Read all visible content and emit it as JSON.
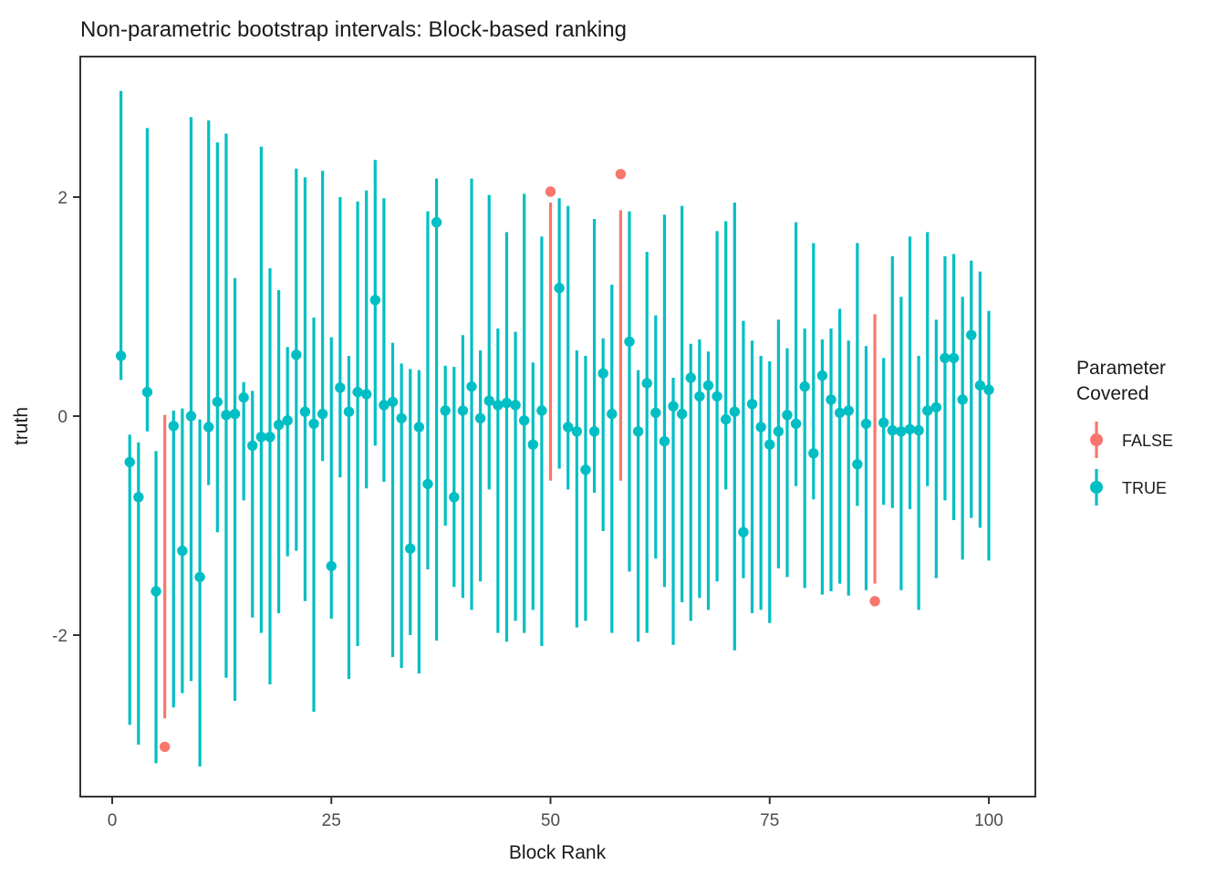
{
  "chart_data": {
    "type": "pointrange",
    "title": "Non-parametric bootstrap intervals: Block-based ranking",
    "xlabel": "Block Rank",
    "ylabel": "truth",
    "xlim": [
      -3.6,
      105.3
    ],
    "ylim": [
      -3.47,
      3.28
    ],
    "x_ticks": [
      0,
      25,
      50,
      75,
      100
    ],
    "y_ticks": [
      -2,
      0,
      2
    ],
    "grid": "off",
    "background": "#ffffff",
    "legend": {
      "title": "Parameter Covered",
      "position": "right",
      "entries": [
        {
          "label": "FALSE",
          "color": "#F8766D"
        },
        {
          "label": "TRUE",
          "color": "#00BFC4"
        }
      ]
    },
    "series_columns": [
      "rank",
      "truth",
      "lower",
      "upper",
      "covered"
    ],
    "points": [
      [
        1,
        0.55,
        0.33,
        2.97,
        true
      ],
      [
        2,
        -0.42,
        -2.82,
        -0.17,
        true
      ],
      [
        3,
        -0.74,
        -3.0,
        -0.24,
        true
      ],
      [
        4,
        0.22,
        -0.14,
        2.63,
        true
      ],
      [
        5,
        -1.6,
        -3.17,
        -0.32,
        true
      ],
      [
        6,
        -3.02,
        -2.76,
        0.01,
        false
      ],
      [
        7,
        -0.09,
        -2.66,
        0.05,
        true
      ],
      [
        8,
        -1.23,
        -2.53,
        0.07,
        true
      ],
      [
        9,
        0.0,
        -2.42,
        2.73,
        true
      ],
      [
        10,
        -1.47,
        -3.2,
        -0.03,
        true
      ],
      [
        11,
        -0.1,
        -0.63,
        2.7,
        true
      ],
      [
        12,
        0.13,
        -1.06,
        2.5,
        true
      ],
      [
        13,
        0.01,
        -2.39,
        2.58,
        true
      ],
      [
        14,
        0.02,
        -2.6,
        1.26,
        true
      ],
      [
        15,
        0.17,
        -0.77,
        0.31,
        true
      ],
      [
        16,
        -0.27,
        -1.84,
        0.23,
        true
      ],
      [
        17,
        -0.19,
        -1.98,
        2.46,
        true
      ],
      [
        18,
        -0.19,
        -2.45,
        1.35,
        true
      ],
      [
        19,
        -0.08,
        -1.8,
        1.15,
        true
      ],
      [
        20,
        -0.04,
        -1.28,
        0.63,
        true
      ],
      [
        21,
        0.56,
        -1.23,
        2.26,
        true
      ],
      [
        22,
        0.04,
        -1.69,
        2.18,
        true
      ],
      [
        23,
        -0.07,
        -2.7,
        0.9,
        true
      ],
      [
        24,
        0.02,
        -0.41,
        2.24,
        true
      ],
      [
        25,
        -1.37,
        -1.85,
        0.72,
        true
      ],
      [
        26,
        0.26,
        -0.56,
        2.0,
        true
      ],
      [
        27,
        0.04,
        -2.4,
        0.55,
        true
      ],
      [
        28,
        0.22,
        -2.1,
        1.96,
        true
      ],
      [
        29,
        0.2,
        -0.66,
        2.06,
        true
      ],
      [
        30,
        1.06,
        -0.27,
        2.34,
        true
      ],
      [
        31,
        0.1,
        -0.6,
        1.99,
        true
      ],
      [
        32,
        0.13,
        -2.2,
        0.67,
        true
      ],
      [
        33,
        -0.02,
        -2.3,
        0.48,
        true
      ],
      [
        34,
        -1.21,
        -2.0,
        0.43,
        true
      ],
      [
        35,
        -0.1,
        -2.35,
        0.42,
        true
      ],
      [
        36,
        -0.62,
        -1.4,
        1.87,
        true
      ],
      [
        37,
        1.77,
        -2.05,
        2.17,
        true
      ],
      [
        38,
        0.05,
        -1.0,
        0.46,
        true
      ],
      [
        39,
        -0.74,
        -1.56,
        0.45,
        true
      ],
      [
        40,
        0.05,
        -1.66,
        0.74,
        true
      ],
      [
        41,
        0.27,
        -1.77,
        2.17,
        true
      ],
      [
        42,
        -0.02,
        -1.51,
        0.6,
        true
      ],
      [
        43,
        0.14,
        -0.67,
        2.02,
        true
      ],
      [
        44,
        0.1,
        -1.98,
        0.8,
        true
      ],
      [
        45,
        0.12,
        -2.06,
        1.68,
        true
      ],
      [
        46,
        0.1,
        -1.87,
        0.77,
        true
      ],
      [
        47,
        -0.04,
        -1.98,
        2.03,
        true
      ],
      [
        48,
        -0.26,
        -1.77,
        0.49,
        true
      ],
      [
        49,
        0.05,
        -2.1,
        1.64,
        true
      ],
      [
        50,
        2.05,
        -0.59,
        1.95,
        false
      ],
      [
        51,
        1.17,
        -0.48,
        1.99,
        true
      ],
      [
        52,
        -0.1,
        -0.67,
        1.92,
        true
      ],
      [
        53,
        -0.14,
        -1.93,
        0.6,
        true
      ],
      [
        54,
        -0.49,
        -1.87,
        0.55,
        true
      ],
      [
        55,
        -0.14,
        -0.7,
        1.8,
        true
      ],
      [
        56,
        0.39,
        -1.05,
        0.71,
        true
      ],
      [
        57,
        0.02,
        -1.98,
        1.2,
        true
      ],
      [
        58,
        2.21,
        -0.59,
        1.88,
        false
      ],
      [
        59,
        0.68,
        -1.42,
        1.87,
        true
      ],
      [
        60,
        -0.14,
        -2.06,
        0.42,
        true
      ],
      [
        61,
        0.3,
        -1.98,
        1.5,
        true
      ],
      [
        62,
        0.03,
        -1.3,
        0.92,
        true
      ],
      [
        63,
        -0.23,
        -1.56,
        1.84,
        true
      ],
      [
        64,
        0.09,
        -2.09,
        0.35,
        true
      ],
      [
        65,
        0.02,
        -1.7,
        1.92,
        true
      ],
      [
        66,
        0.35,
        -1.87,
        0.66,
        true
      ],
      [
        67,
        0.18,
        -1.66,
        0.7,
        true
      ],
      [
        68,
        0.28,
        -1.77,
        0.59,
        true
      ],
      [
        69,
        0.18,
        -1.51,
        1.69,
        true
      ],
      [
        70,
        -0.03,
        -0.67,
        1.78,
        true
      ],
      [
        71,
        0.04,
        -2.14,
        1.95,
        true
      ],
      [
        72,
        -1.06,
        -1.48,
        0.87,
        true
      ],
      [
        73,
        0.11,
        -1.8,
        0.69,
        true
      ],
      [
        74,
        -0.1,
        -1.77,
        0.55,
        true
      ],
      [
        75,
        -0.26,
        -1.89,
        0.5,
        true
      ],
      [
        76,
        -0.14,
        -1.39,
        0.88,
        true
      ],
      [
        77,
        0.01,
        -1.47,
        0.62,
        true
      ],
      [
        78,
        -0.07,
        -0.64,
        1.77,
        true
      ],
      [
        79,
        0.27,
        -1.57,
        0.8,
        true
      ],
      [
        80,
        -0.34,
        -0.76,
        1.58,
        true
      ],
      [
        81,
        0.37,
        -1.63,
        0.7,
        true
      ],
      [
        82,
        0.15,
        -1.6,
        0.8,
        true
      ],
      [
        83,
        0.03,
        -1.53,
        0.98,
        true
      ],
      [
        84,
        0.05,
        -1.64,
        0.69,
        true
      ],
      [
        85,
        -0.44,
        -0.82,
        1.58,
        true
      ],
      [
        86,
        -0.07,
        -1.59,
        0.64,
        true
      ],
      [
        87,
        -1.69,
        -1.53,
        0.93,
        false
      ],
      [
        88,
        -0.06,
        -0.81,
        0.53,
        true
      ],
      [
        89,
        -0.13,
        -0.84,
        1.46,
        true
      ],
      [
        90,
        -0.14,
        -1.59,
        1.09,
        true
      ],
      [
        91,
        -0.12,
        -0.85,
        1.64,
        true
      ],
      [
        92,
        -0.13,
        -1.77,
        0.55,
        true
      ],
      [
        93,
        0.05,
        -0.64,
        1.68,
        true
      ],
      [
        94,
        0.08,
        -1.48,
        0.88,
        true
      ],
      [
        95,
        0.53,
        -0.77,
        1.46,
        true
      ],
      [
        96,
        0.53,
        -0.95,
        1.48,
        true
      ],
      [
        97,
        0.15,
        -1.31,
        1.09,
        true
      ],
      [
        98,
        0.74,
        -0.93,
        1.42,
        true
      ],
      [
        99,
        0.28,
        -1.02,
        1.32,
        true
      ],
      [
        100,
        0.24,
        -1.32,
        0.96,
        true
      ]
    ]
  }
}
